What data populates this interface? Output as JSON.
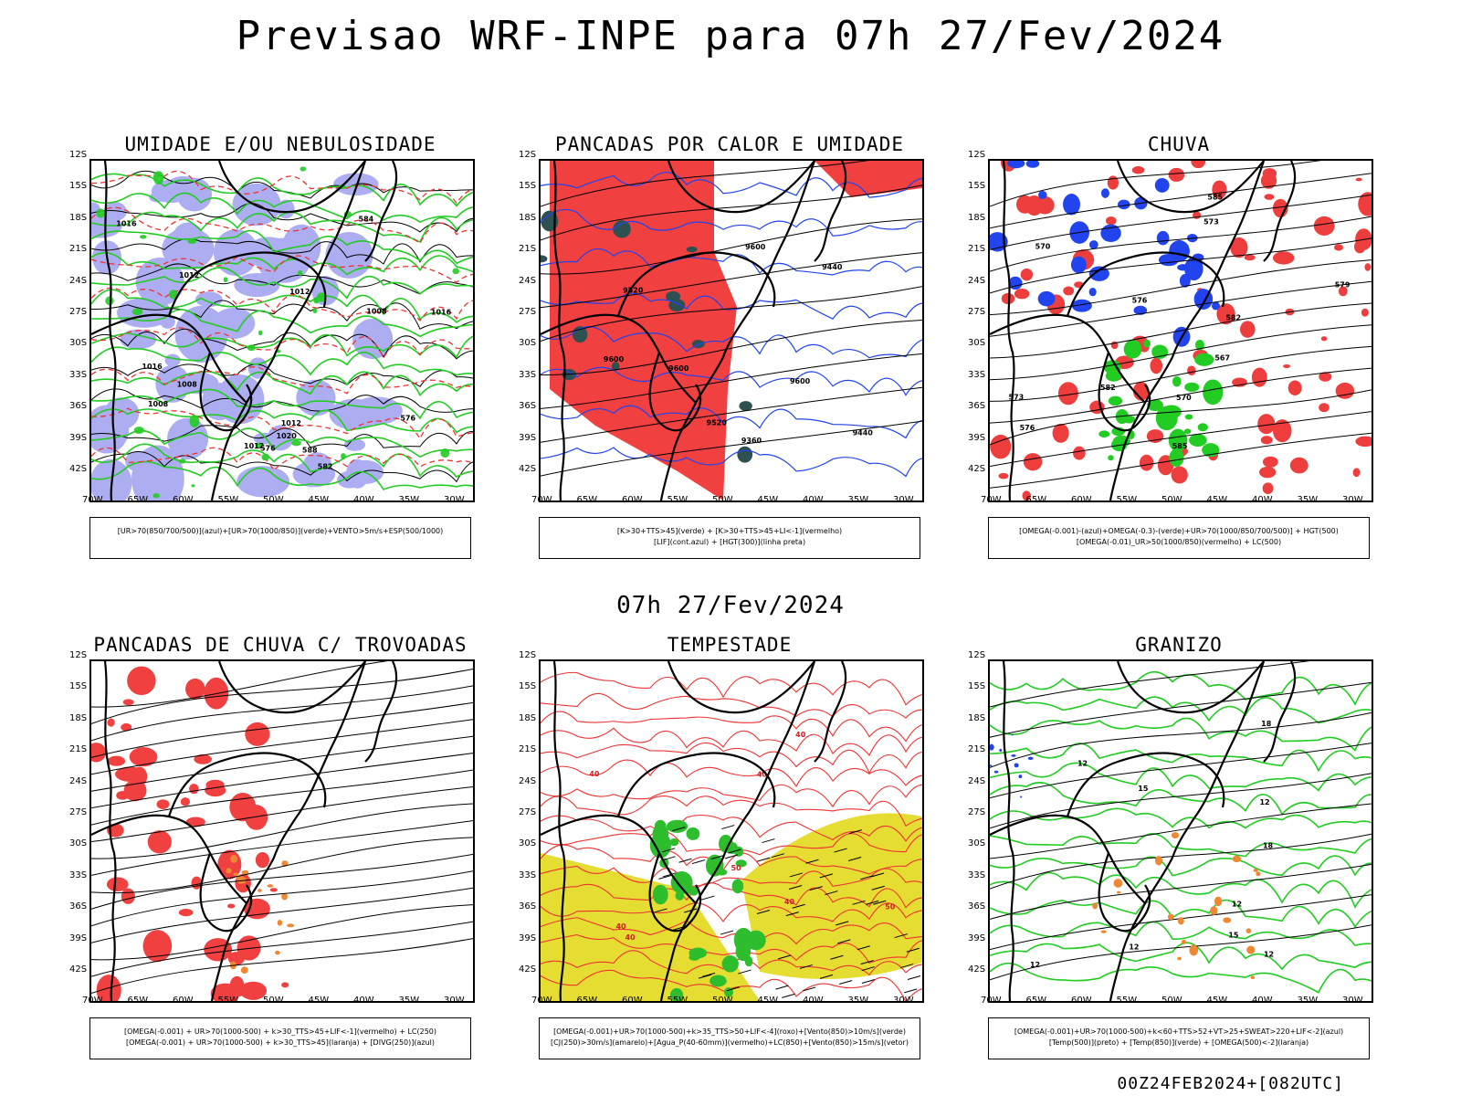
{
  "header": {
    "title": "Previsao WRF-INPE  para 07h 27/Fev/2024"
  },
  "middle": {
    "title": "07h 27/Fev/2024"
  },
  "footer": {
    "run": "00Z24FEB2024+[082UTC]"
  },
  "axes": {
    "lat": [
      "12S",
      "15S",
      "18S",
      "21S",
      "24S",
      "27S",
      "30S",
      "33S",
      "36S",
      "39S",
      "42S"
    ],
    "lon": [
      "70W",
      "65W",
      "60W",
      "55W",
      "50W",
      "45W",
      "40W",
      "35W",
      "30W"
    ]
  },
  "colors": {
    "blue_fill": "#9999ee",
    "green": "#22cc22",
    "red": "#ee3333",
    "red_fill": "#f04040",
    "blue": "#2244ee",
    "yellow": "#e6dd33",
    "orange": "#ee8833",
    "darkgreen": "#2f5050"
  },
  "panels": [
    {
      "id": "umidade",
      "title": "UMIDADE E/OU NEBULOSIDADE",
      "legend": [
        "[UR>70(850/700/500)](azul)+[UR>70(1000/850)](verde)+VENTO>5m/s+ESP(500/1000)"
      ],
      "contour_labels": [
        "1012",
        "1012",
        "1012",
        "1016",
        "1016",
        "1008",
        "1020",
        "1016",
        "1008",
        "1012",
        "1008",
        "576",
        "576",
        "582",
        "584",
        "588"
      ]
    },
    {
      "id": "pancadas-calor",
      "title": "PANCADAS POR CALOR E UMIDADE",
      "legend": [
        "[K>30+TTS>45](verde)  +  [K>30+TTS>45+LI<-1](vermelho)",
        "[LIF](cont.azul)  +  [HGT(300)](linha preta)"
      ],
      "contour_labels": [
        "9600",
        "9600",
        "9600",
        "9600",
        "9520",
        "9520",
        "9440",
        "9440",
        "9360"
      ]
    },
    {
      "id": "chuva",
      "title": "CHUVA",
      "legend": [
        "[OMEGA(-0.001)-(azul)+OMEGA(-0.3)-(verde)+UR>70(1000/850/700/500)]  +  HGT(500)",
        "[OMEGA(-0.01)_UR>50(1000/850)(vermelho)  +  LC(500)"
      ],
      "contour_labels": [
        "585",
        "585",
        "582",
        "582",
        "579",
        "576",
        "576",
        "573",
        "573",
        "570",
        "567",
        "570"
      ]
    },
    {
      "id": "trovoadas",
      "title": "PANCADAS DE CHUVA C/ TROVOADAS",
      "legend": [
        "[OMEGA(-0.001)  +  UR>70(1000-500)  +  k>30_TTS>45+LIF<-1](vermelho)  +  LC(250)",
        "[OMEGA(-0.001)  +  UR>70(1000-500)  +  k>30_TTS>45](laranja)  +  [DIVG(250)](azul)"
      ],
      "contour_labels": []
    },
    {
      "id": "tempestade",
      "title": "TEMPESTADE",
      "legend": [
        "[OMEGA(-0.001)+UR>70(1000-500)+k>35_TTS>50+LIF<-4](roxo)+[Vento(850)>10m/s](verde)",
        "[CJ(250)>30m/s](amarelo)+[Agua_P(40-60mm)](vermelho)+LC(850)+[Vento(850)>15m/s](vetor)"
      ],
      "contour_labels": [
        "40",
        "40",
        "40",
        "40",
        "40",
        "40",
        "50",
        "50"
      ]
    },
    {
      "id": "granizo",
      "title": "GRANIZO",
      "legend": [
        "[OMEGA(-0.001)+UR>70(1000-500)+k<60+TTS>52+VT>25+SWEAT>220+LIF<-2](azul)",
        "[Temp(500)](preto)  +  [Temp(850)](verde)  +  [OMEGA(500)<-2](laranja)"
      ],
      "contour_labels": [
        "12",
        "12",
        "12",
        "12",
        "12",
        "12",
        "15",
        "15",
        "18",
        "18"
      ]
    }
  ]
}
